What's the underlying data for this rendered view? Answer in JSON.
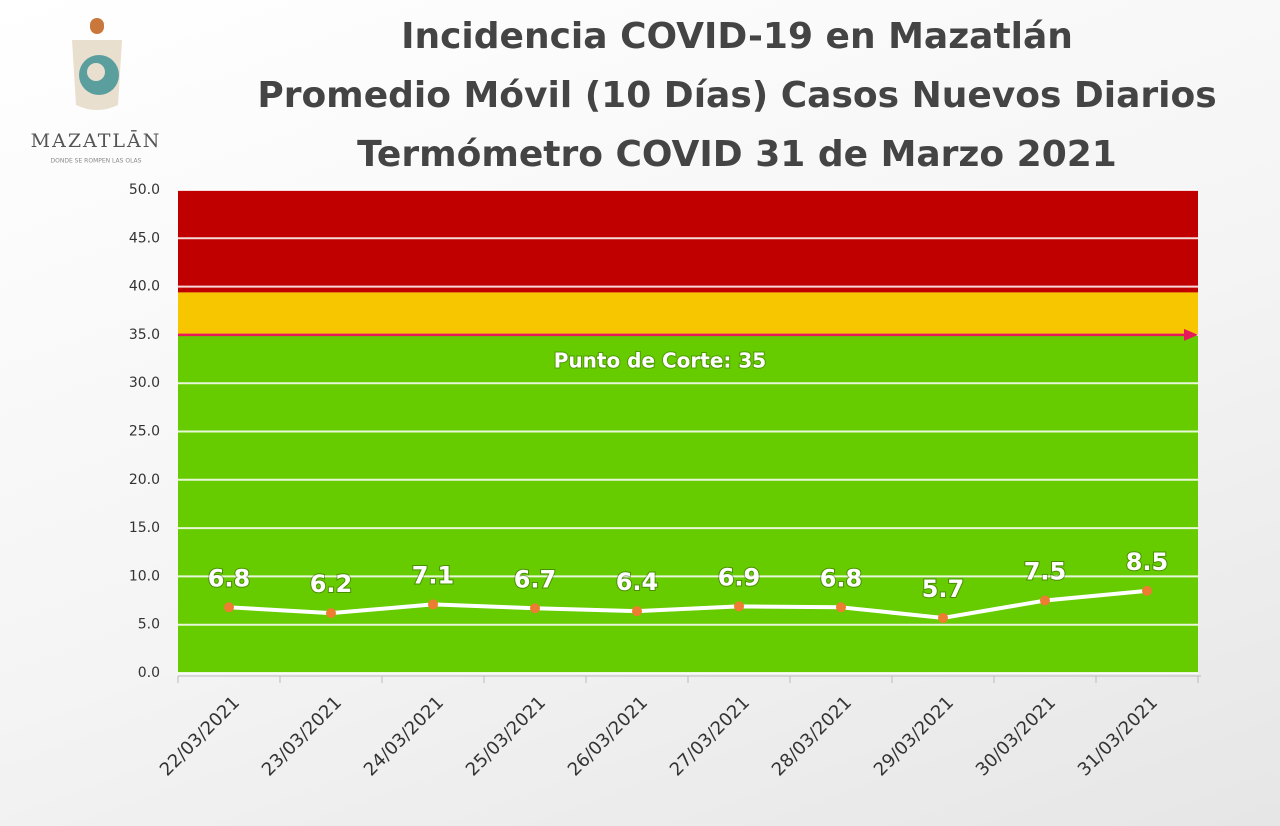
{
  "logo": {
    "name": "MAZATLĀN",
    "tagline": "DONDE SE ROMPEN LAS OLAS"
  },
  "chart_data": {
    "type": "line",
    "title": [
      "Incidencia COVID-19 en Mazatlán",
      "Promedio Móvil (10 Días) Casos Nuevos Diarios",
      "Termómetro COVID 31 de Marzo 2021"
    ],
    "categories": [
      "22/03/2021",
      "23/03/2021",
      "24/03/2021",
      "25/03/2021",
      "26/03/2021",
      "27/03/2021",
      "28/03/2021",
      "29/03/2021",
      "30/03/2021",
      "31/03/2021"
    ],
    "values": [
      6.8,
      6.2,
      7.1,
      6.7,
      6.4,
      6.9,
      6.8,
      5.7,
      7.5,
      8.5
    ],
    "color": "#ffffff",
    "marker_color": "#ed7d31",
    "ylim": [
      0,
      50
    ],
    "yticks": [
      {
        "value": 0,
        "label": "0.0"
      },
      {
        "value": 5,
        "label": "5.0"
      },
      {
        "value": 10,
        "label": "10.0"
      },
      {
        "value": 15,
        "label": "15.0"
      },
      {
        "value": 20,
        "label": "20.0"
      },
      {
        "value": 25,
        "label": "25.0"
      },
      {
        "value": 30,
        "label": "30.0"
      },
      {
        "value": 35,
        "label": "35.0"
      },
      {
        "value": 40,
        "label": "40.0"
      },
      {
        "value": 45,
        "label": "45.0"
      },
      {
        "value": 50,
        "label": "50.0"
      }
    ],
    "grid": true,
    "bands": [
      {
        "from": 0,
        "to": 35,
        "color": "#66cc00"
      },
      {
        "from": 35,
        "to": 39.4,
        "color": "#f7c600"
      },
      {
        "from": 39.4,
        "to": 50,
        "color": "#c00000"
      }
    ],
    "threshold": {
      "value": 35,
      "color": "#e6195a",
      "label": "Punto de Corte: 35"
    }
  }
}
